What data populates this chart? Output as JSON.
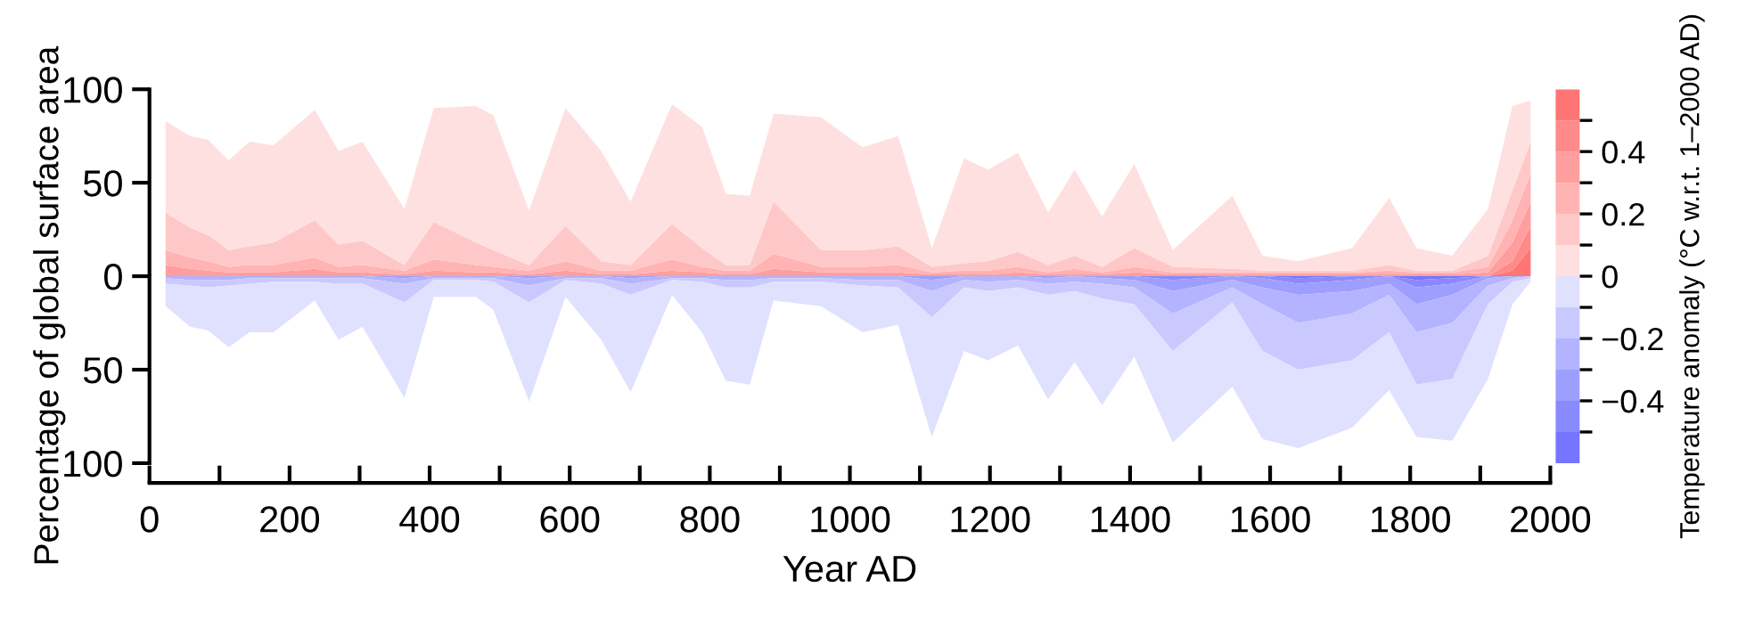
{
  "chart_data": [
    {
      "type": "area",
      "stacked": true,
      "tick_labels": "y",
      "ylabel": "Percentage of global surface area",
      "x": [
        23,
        58,
        84,
        113,
        143,
        177,
        236,
        270,
        304,
        364,
        406,
        466,
        491,
        542,
        594,
        645,
        687,
        746,
        789,
        823,
        857,
        891,
        959,
        1018,
        1069,
        1117,
        1163,
        1197,
        1240,
        1283,
        1321,
        1360,
        1406,
        1461,
        1546,
        1589,
        1640,
        1717,
        1770,
        1809,
        1860,
        1911,
        1946,
        1972
      ],
      "xlim": [
        0,
        2000
      ],
      "ylim": [
        0,
        100
      ],
      "yticks": [
        0,
        50,
        100
      ],
      "series": [
        {
          "color": "#ff7575",
          "values": [
            0,
            0,
            0,
            0,
            0,
            0,
            0,
            0,
            0,
            0,
            0,
            0,
            0,
            0,
            0,
            0,
            0,
            0,
            0,
            0,
            0,
            0,
            0,
            0,
            0,
            0,
            0,
            0,
            0,
            0,
            0,
            0,
            0,
            0,
            0,
            0,
            0,
            0,
            0,
            0,
            0,
            0,
            3,
            15
          ]
        },
        {
          "color": "#ff8a8a",
          "values": [
            0,
            0,
            0,
            0,
            0,
            0,
            0,
            0,
            0,
            0,
            0,
            0,
            0,
            0,
            0,
            0,
            0,
            0,
            0,
            0,
            0,
            0,
            0,
            0,
            0,
            0,
            0,
            0,
            0,
            0,
            0,
            0,
            0,
            0,
            0,
            0,
            0,
            0,
            0,
            0,
            0,
            0,
            5,
            12
          ]
        },
        {
          "color": "#ff9e9e",
          "values": [
            6,
            4,
            3,
            2,
            2,
            2,
            4,
            2,
            2,
            1,
            3,
            2,
            2,
            1,
            3,
            1,
            1,
            3,
            2,
            1,
            1,
            4,
            2,
            2,
            2,
            1,
            1,
            1,
            2,
            1,
            1,
            1,
            2,
            1,
            1,
            1,
            1,
            1,
            1,
            1,
            1,
            2,
            10,
            13
          ]
        },
        {
          "color": "#ffb3b3",
          "values": [
            8,
            6,
            5,
            3,
            4,
            4,
            6,
            3,
            4,
            2,
            6,
            4,
            3,
            2,
            5,
            2,
            2,
            6,
            3,
            2,
            2,
            8,
            3,
            3,
            4,
            1,
            2,
            2,
            3,
            1,
            3,
            1,
            3,
            1,
            1,
            1,
            1,
            1,
            2,
            1,
            1,
            3,
            12,
            15
          ]
        },
        {
          "color": "#ffc8c8",
          "values": [
            20,
            16,
            14,
            9,
            10,
            12,
            20,
            12,
            13,
            3,
            20,
            12,
            9,
            3,
            19,
            5,
            3,
            19,
            10,
            3,
            3,
            28,
            9,
            9,
            10,
            3,
            4,
            5,
            8,
            4,
            7,
            3,
            10,
            3,
            2,
            1,
            1,
            1,
            3,
            1,
            1,
            6,
            16,
            17
          ]
        },
        {
          "color": "#ffe0e0",
          "values": [
            49,
            49,
            51,
            48,
            56,
            52,
            59,
            50,
            53,
            30,
            61,
            73,
            72,
            29,
            63,
            59,
            34,
            64,
            65,
            38,
            37,
            47,
            71,
            55,
            59,
            10,
            56,
            49,
            53,
            28,
            46,
            27,
            45,
            9,
            39,
            8,
            5,
            12,
            36,
            12,
            8,
            25,
            45,
            22
          ]
        }
      ]
    },
    {
      "type": "area",
      "stacked": true,
      "xlabel": "Year AD",
      "clabel": "Temperature anomaly (°C w.r.t. 1–2000 AD)",
      "x": [
        23,
        58,
        84,
        113,
        143,
        177,
        236,
        270,
        304,
        364,
        406,
        466,
        491,
        542,
        594,
        645,
        687,
        746,
        789,
        823,
        857,
        891,
        959,
        1018,
        1069,
        1117,
        1163,
        1197,
        1240,
        1283,
        1321,
        1360,
        1406,
        1461,
        1546,
        1589,
        1640,
        1717,
        1770,
        1809,
        1860,
        1911,
        1946,
        1972
      ],
      "xlim": [
        0,
        2000
      ],
      "xticks": [
        0,
        {
          "value": 100,
          "label": null
        },
        200,
        {
          "value": 300,
          "label": null
        },
        400,
        {
          "value": 500,
          "label": null
        },
        600,
        {
          "value": 700,
          "label": null
        },
        800,
        {
          "value": 900,
          "label": null
        },
        1000,
        {
          "value": 1100,
          "label": null
        },
        1200,
        {
          "value": 1300,
          "label": null
        },
        1400,
        {
          "value": 1500,
          "label": null
        },
        1600,
        {
          "value": 1700,
          "label": null
        },
        1800,
        {
          "value": 1900,
          "label": null
        },
        2000
      ],
      "ylim": [
        100,
        0
      ],
      "yticks": [
        50,
        100
      ],
      "clim": [
        -0.6,
        0.6
      ],
      "cticks": [
        {
          "value": -0.5,
          "label": null
        },
        {
          "value": -0.4,
          "label": "−0.4"
        },
        {
          "value": -0.3,
          "label": null
        },
        {
          "value": -0.2,
          "label": "−0.2"
        },
        {
          "value": -0.1,
          "label": null
        },
        0,
        {
          "value": 0.1,
          "label": null
        },
        0.2,
        {
          "value": 0.3,
          "label": null
        },
        0.4,
        {
          "value": 0.5,
          "label": null
        }
      ],
      "series": [
        {
          "color": "#7575ff",
          "values": [
            0,
            0,
            0,
            0,
            0,
            0,
            0,
            0,
            0,
            0,
            0,
            0,
            0,
            0,
            0,
            0,
            0,
            0,
            0,
            0,
            0,
            0,
            0,
            0,
            0,
            0,
            0,
            0,
            0,
            0,
            0,
            0,
            0,
            0,
            0,
            0,
            1,
            0,
            0,
            2,
            1,
            0,
            0,
            0
          ]
        },
        {
          "color": "#8a8aff",
          "values": [
            0,
            0,
            0,
            0,
            0,
            0,
            0,
            0,
            0,
            0,
            0,
            0,
            0,
            0,
            0,
            0,
            0,
            0,
            0,
            0,
            0,
            0,
            0,
            0,
            0,
            0,
            0,
            0,
            0,
            0,
            0,
            0,
            0,
            2,
            0,
            1,
            3,
            2,
            0,
            4,
            3,
            0,
            0,
            0
          ]
        },
        {
          "color": "#9e9eff",
          "values": [
            0,
            0,
            0,
            0,
            0,
            0,
            0,
            0,
            0,
            1,
            0,
            0,
            0,
            1,
            0,
            0,
            1,
            0,
            0,
            0,
            0,
            0,
            0,
            0,
            0,
            2,
            0,
            0,
            0,
            1,
            0,
            1,
            2,
            6,
            2,
            5,
            6,
            6,
            4,
            9,
            6,
            1,
            0,
            0
          ]
        },
        {
          "color": "#b3b3ff",
          "values": [
            1,
            2,
            2,
            2,
            1,
            1,
            1,
            1,
            1,
            3,
            1,
            1,
            1,
            4,
            1,
            1,
            3,
            1,
            1,
            2,
            2,
            1,
            1,
            2,
            2,
            6,
            2,
            3,
            2,
            3,
            3,
            3,
            4,
            12,
            4,
            9,
            15,
            12,
            6,
            15,
            15,
            4,
            1,
            0
          ]
        },
        {
          "color": "#c9c9ff",
          "values": [
            3,
            3,
            4,
            3,
            3,
            2,
            2,
            3,
            3,
            10,
            1,
            1,
            2,
            9,
            1,
            3,
            6,
            1,
            2,
            4,
            4,
            2,
            2,
            3,
            4,
            14,
            4,
            5,
            4,
            6,
            5,
            8,
            9,
            20,
            8,
            25,
            25,
            25,
            20,
            28,
            30,
            10,
            2,
            1
          ]
        },
        {
          "color": "#e0e0ff",
          "values": [
            12,
            22,
            23,
            33,
            26,
            27,
            10,
            30,
            23,
            51,
            9,
            9,
            15,
            53,
            9,
            30,
            52,
            8,
            27,
            50,
            52,
            10,
            13,
            25,
            20,
            64,
            34,
            37,
            31,
            56,
            38,
            57,
            28,
            49,
            45,
            47,
            42,
            36,
            31,
            28,
            33,
            40,
            12,
            2
          ]
        }
      ]
    }
  ]
}
